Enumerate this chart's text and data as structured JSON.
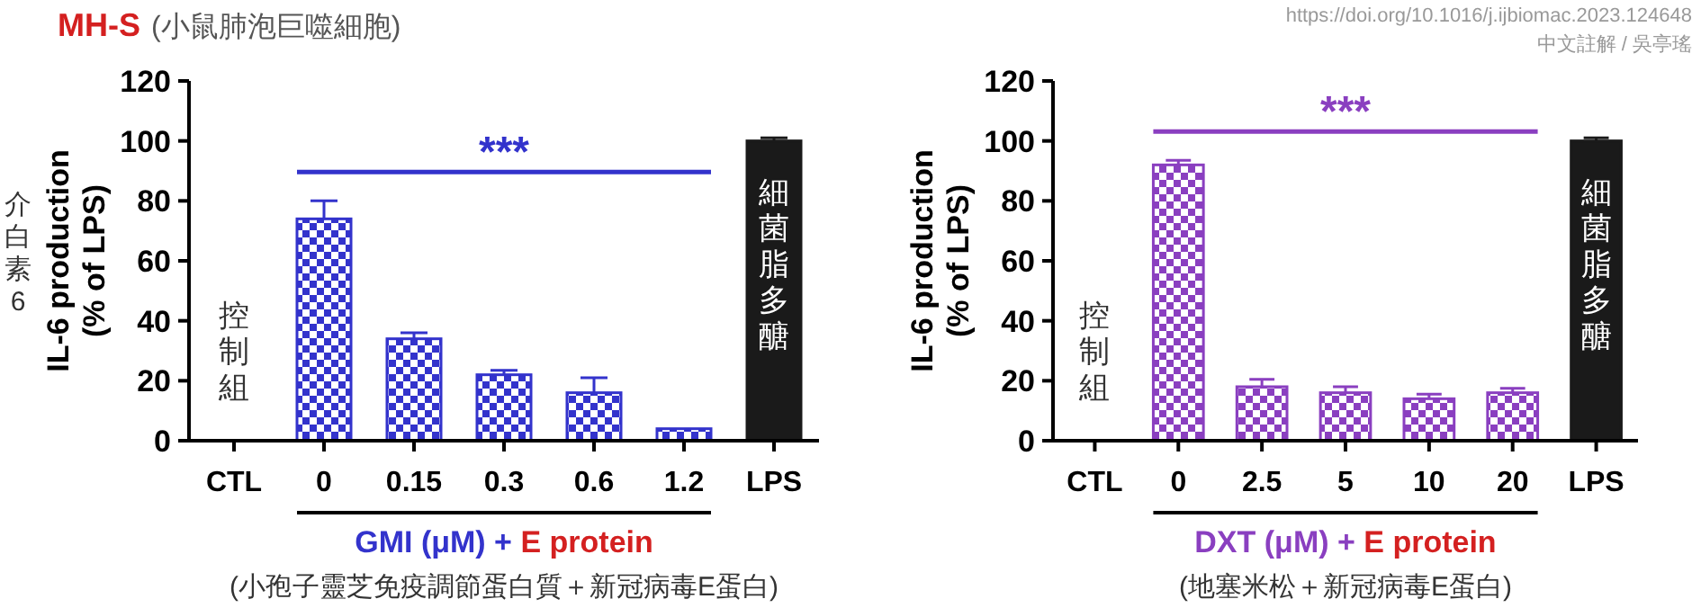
{
  "chart_data": [
    {
      "type": "bar",
      "title": "MH-S",
      "subtitle": "(小鼠肺泡巨噬細胞)",
      "ylabel": "IL-6 production (% of LPS)",
      "xlabel": "GMI (μM) + E protein",
      "categories": [
        "CTL",
        "0",
        "0.15",
        "0.3",
        "0.6",
        "1.2",
        "LPS"
      ],
      "values": [
        0,
        74,
        34,
        22,
        16,
        4,
        100
      ],
      "colors": [
        "#3333cc",
        "#3333cc",
        "#3333cc",
        "#3333cc",
        "#3333cc",
        "#3333cc",
        "#1a1a1a"
      ],
      "errors": [
        null,
        6,
        2,
        1.5,
        5,
        null,
        1
      ],
      "ylim": [
        0,
        120
      ],
      "yticks": [
        0,
        20,
        40,
        60,
        80,
        100,
        120
      ],
      "annotations": [
        "***",
        "控制組",
        "細菌脂多醣",
        "(小孢子靈芝免疫調節蛋白質＋新冠病毒E蛋白)",
        "介白素6"
      ]
    },
    {
      "type": "bar",
      "ylabel": "IL-6 production (% of LPS)",
      "xlabel": "DXT (μM) + E protein",
      "categories": [
        "CTL",
        "0",
        "2.5",
        "5",
        "10",
        "20",
        "LPS"
      ],
      "values": [
        0,
        92,
        18,
        16,
        14,
        16,
        100
      ],
      "colors": [
        "#8a3fc0",
        "#8a3fc0",
        "#8a3fc0",
        "#8a3fc0",
        "#8a3fc0",
        "#8a3fc0",
        "#1a1a1a"
      ],
      "errors": [
        null,
        1.5,
        2.5,
        2,
        1.5,
        1.5,
        1
      ],
      "ylim": [
        0,
        120
      ],
      "yticks": [
        0,
        20,
        40,
        60,
        80,
        100,
        120
      ],
      "annotations": [
        "***",
        "控制組",
        "細菌脂多醣",
        "(地塞米松＋新冠病毒E蛋白)",
        "https://doi.org/10.1016/j.ijbiomac.2023.124648",
        "中文註解 / 吳亭瑤"
      ]
    }
  ]
}
